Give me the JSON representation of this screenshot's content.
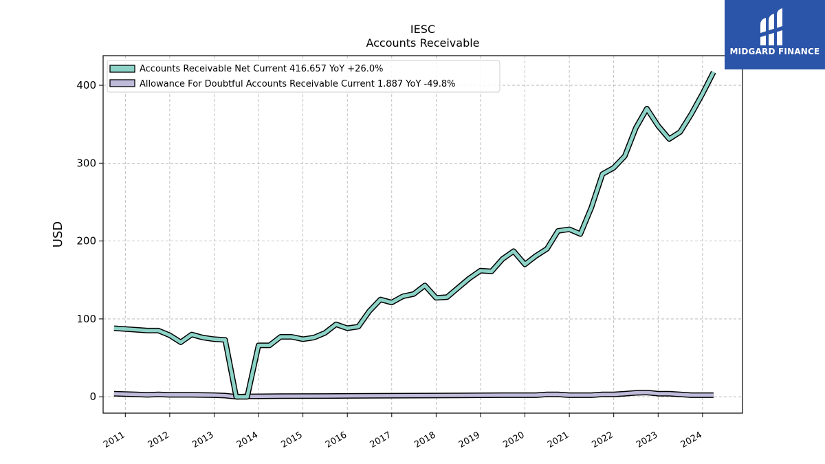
{
  "chart_data": {
    "type": "line",
    "title": "IESC",
    "subtitle": "Accounts Receivable",
    "ylabel": "USD",
    "xlabel": "",
    "ylim": [
      -21,
      438
    ],
    "yticks": [
      0,
      100,
      200,
      300,
      400
    ],
    "xticks": [
      "2011",
      "2012",
      "2013",
      "2014",
      "2015",
      "2016",
      "2017",
      "2018",
      "2019",
      "2020",
      "2021",
      "2022",
      "2023",
      "2024"
    ],
    "grid": true,
    "legend_position": "top-left",
    "series": [
      {
        "name": "Accounts Receivable Net Current",
        "legend_label": "Accounts Receivable Net Current  416.657 YoY +26.0%",
        "color": "#8dd3c7",
        "points": [
          [
            "2010-09-30",
            88
          ],
          [
            "2010-12-31",
            87
          ],
          [
            "2011-03-31",
            86
          ],
          [
            "2011-06-30",
            85
          ],
          [
            "2011-09-30",
            85
          ],
          [
            "2011-12-31",
            79
          ],
          [
            "2012-03-31",
            70
          ],
          [
            "2012-06-30",
            80
          ],
          [
            "2012-09-30",
            76
          ],
          [
            "2012-12-31",
            74
          ],
          [
            "2013-03-31",
            73
          ],
          [
            "2013-06-30",
            0
          ],
          [
            "2013-09-30",
            0
          ],
          [
            "2013-12-31",
            66
          ],
          [
            "2014-03-31",
            66
          ],
          [
            "2014-06-30",
            77
          ],
          [
            "2014-09-30",
            77
          ],
          [
            "2014-12-31",
            74
          ],
          [
            "2015-03-31",
            76
          ],
          [
            "2015-06-30",
            82
          ],
          [
            "2015-09-30",
            93
          ],
          [
            "2015-12-31",
            88
          ],
          [
            "2016-03-31",
            90
          ],
          [
            "2016-06-30",
            110
          ],
          [
            "2016-09-30",
            125
          ],
          [
            "2016-12-31",
            121
          ],
          [
            "2017-03-31",
            129
          ],
          [
            "2017-06-30",
            132
          ],
          [
            "2017-09-30",
            143
          ],
          [
            "2017-12-31",
            127
          ],
          [
            "2018-03-31",
            128
          ],
          [
            "2018-06-30",
            140
          ],
          [
            "2018-09-30",
            152
          ],
          [
            "2018-12-31",
            162
          ],
          [
            "2019-03-31",
            161
          ],
          [
            "2019-06-30",
            177
          ],
          [
            "2019-09-30",
            187
          ],
          [
            "2019-12-31",
            170
          ],
          [
            "2020-03-31",
            181
          ],
          [
            "2020-06-30",
            190
          ],
          [
            "2020-09-30",
            213
          ],
          [
            "2020-12-31",
            215
          ],
          [
            "2021-03-31",
            209
          ],
          [
            "2021-06-30",
            243
          ],
          [
            "2021-09-30",
            286
          ],
          [
            "2021-12-31",
            294
          ],
          [
            "2022-03-31",
            309
          ],
          [
            "2022-06-30",
            345
          ],
          [
            "2022-09-30",
            370
          ],
          [
            "2022-12-31",
            348
          ],
          [
            "2023-03-31",
            331
          ],
          [
            "2023-06-30",
            340
          ],
          [
            "2023-09-30",
            363
          ],
          [
            "2023-12-31",
            389
          ],
          [
            "2024-03-31",
            417
          ]
        ]
      },
      {
        "name": "Allowance For Doubtful Accounts Receivable Current",
        "legend_label": "Allowance For Doubtful Accounts Receivable Current  1.887 YoY -49.8%",
        "color": "#bebada",
        "points": [
          [
            "2010-09-30",
            4
          ],
          [
            "2011-03-31",
            3
          ],
          [
            "2011-06-30",
            2.5
          ],
          [
            "2011-09-30",
            3
          ],
          [
            "2011-12-31",
            2.5
          ],
          [
            "2012-06-30",
            2.5
          ],
          [
            "2012-12-31",
            2
          ],
          [
            "2013-03-31",
            1.5
          ],
          [
            "2013-06-30",
            0
          ],
          [
            "2013-09-30",
            0.5
          ],
          [
            "2014-06-30",
            0.8
          ],
          [
            "2015-06-30",
            1
          ],
          [
            "2016-06-30",
            1.2
          ],
          [
            "2017-06-30",
            1.5
          ],
          [
            "2018-06-30",
            1.8
          ],
          [
            "2019-06-30",
            2
          ],
          [
            "2019-12-31",
            2
          ],
          [
            "2020-03-31",
            2
          ],
          [
            "2020-06-30",
            3
          ],
          [
            "2020-09-30",
            3
          ],
          [
            "2020-12-31",
            2
          ],
          [
            "2021-03-31",
            2
          ],
          [
            "2021-06-30",
            2
          ],
          [
            "2021-09-30",
            3
          ],
          [
            "2021-12-31",
            3
          ],
          [
            "2022-03-31",
            4
          ],
          [
            "2022-06-30",
            5
          ],
          [
            "2022-09-30",
            5.5
          ],
          [
            "2022-12-31",
            4
          ],
          [
            "2023-03-31",
            4
          ],
          [
            "2023-06-30",
            3
          ],
          [
            "2023-09-30",
            2
          ],
          [
            "2023-12-31",
            2
          ],
          [
            "2024-03-31",
            2
          ]
        ]
      }
    ]
  },
  "brand": {
    "name": "MIDGARD FINANCE",
    "background": "#2b55a8"
  }
}
